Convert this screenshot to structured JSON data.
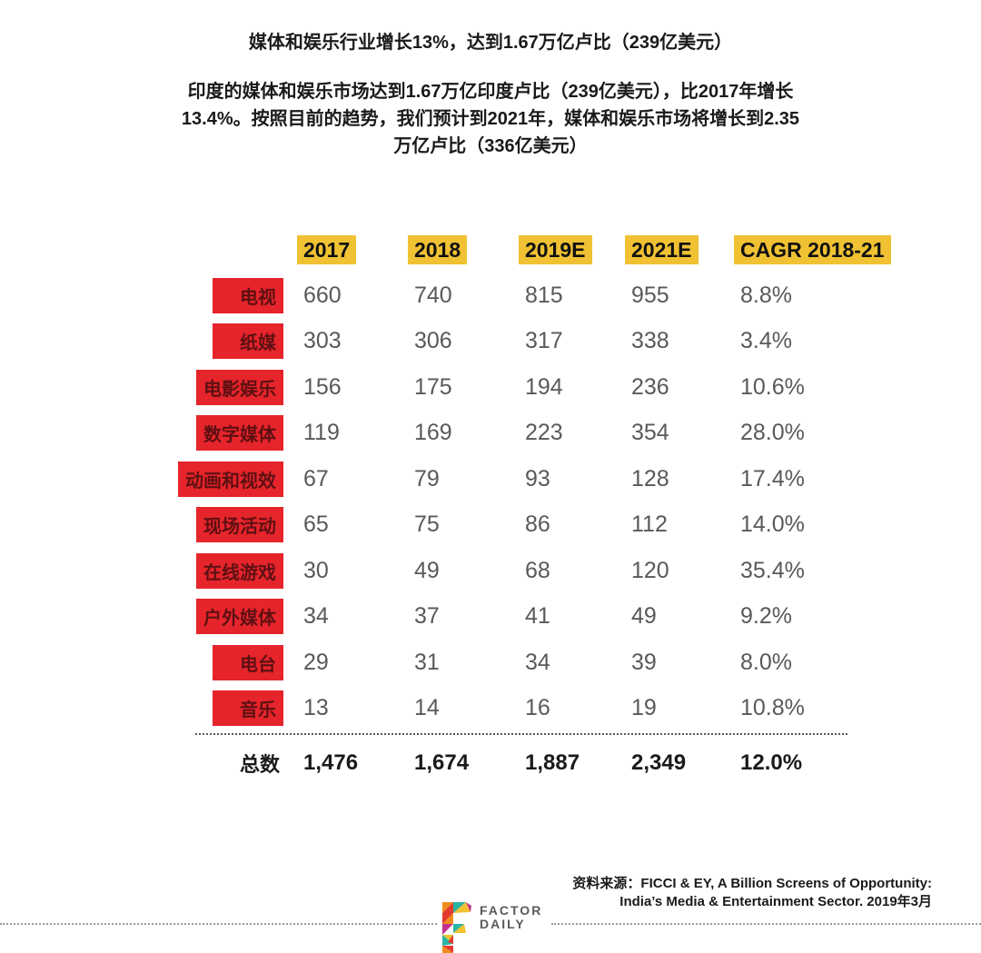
{
  "page": {
    "title": "媒体和娱乐行业增长13%，达到1.67万亿卢比（239亿美元）",
    "intro": "印度的媒体和娱乐市场达到1.67万亿印度卢比（239亿美元），比2017年增长\n13.4%。按照目前的趋势，我们预计到2021年，媒体和娱乐市场将增长到2.35\n万亿卢比（336亿美元）",
    "source_line1": "资料来源：FICCI & EY, A Billion Screens of Opportunity:",
    "source_line2": "India’s Media & Entertainment Sector. 2019年3月",
    "logo_line1": "FACTOR",
    "logo_line2": "DAILY"
  },
  "chart_data": {
    "type": "table",
    "title": "媒体和娱乐行业增长13%，达到1.67万亿卢比（239亿美元）",
    "columns": [
      "2017",
      "2018",
      "2019E",
      "2021E",
      "CAGR 2018-21"
    ],
    "rows": [
      {
        "label": "电视",
        "values": [
          "660",
          "740",
          "815",
          "955",
          "8.8%"
        ]
      },
      {
        "label": "纸媒",
        "values": [
          "303",
          "306",
          "317",
          "338",
          "3.4%"
        ]
      },
      {
        "label": "电影娱乐",
        "values": [
          "156",
          "175",
          "194",
          "236",
          "10.6%"
        ]
      },
      {
        "label": "数字媒体",
        "values": [
          "119",
          "169",
          "223",
          "354",
          "28.0%"
        ]
      },
      {
        "label": "动画和视效",
        "values": [
          "67",
          "79",
          "93",
          "128",
          "17.4%"
        ]
      },
      {
        "label": "现场活动",
        "values": [
          "65",
          "75",
          "86",
          "112",
          "14.0%"
        ]
      },
      {
        "label": "在线游戏",
        "values": [
          "30",
          "49",
          "68",
          "120",
          "35.4%"
        ]
      },
      {
        "label": "户外媒体",
        "values": [
          "34",
          "37",
          "41",
          "49",
          "9.2%"
        ]
      },
      {
        "label": "电台",
        "values": [
          "29",
          "31",
          "34",
          "39",
          "8.0%"
        ]
      },
      {
        "label": "音乐",
        "values": [
          "13",
          "14",
          "16",
          "19",
          "10.8%"
        ]
      }
    ],
    "total": {
      "label": "总数",
      "values": [
        "1,476",
        "1,674",
        "1,887",
        "2,349",
        "12.0%"
      ]
    }
  },
  "colors": {
    "header_highlight": "#F0C233",
    "row_highlight": "#E6242B",
    "row_label_text": "#5E1012",
    "value_text": "#58595B",
    "ink": "#1A1A1A",
    "logo_text": "#58595B"
  }
}
